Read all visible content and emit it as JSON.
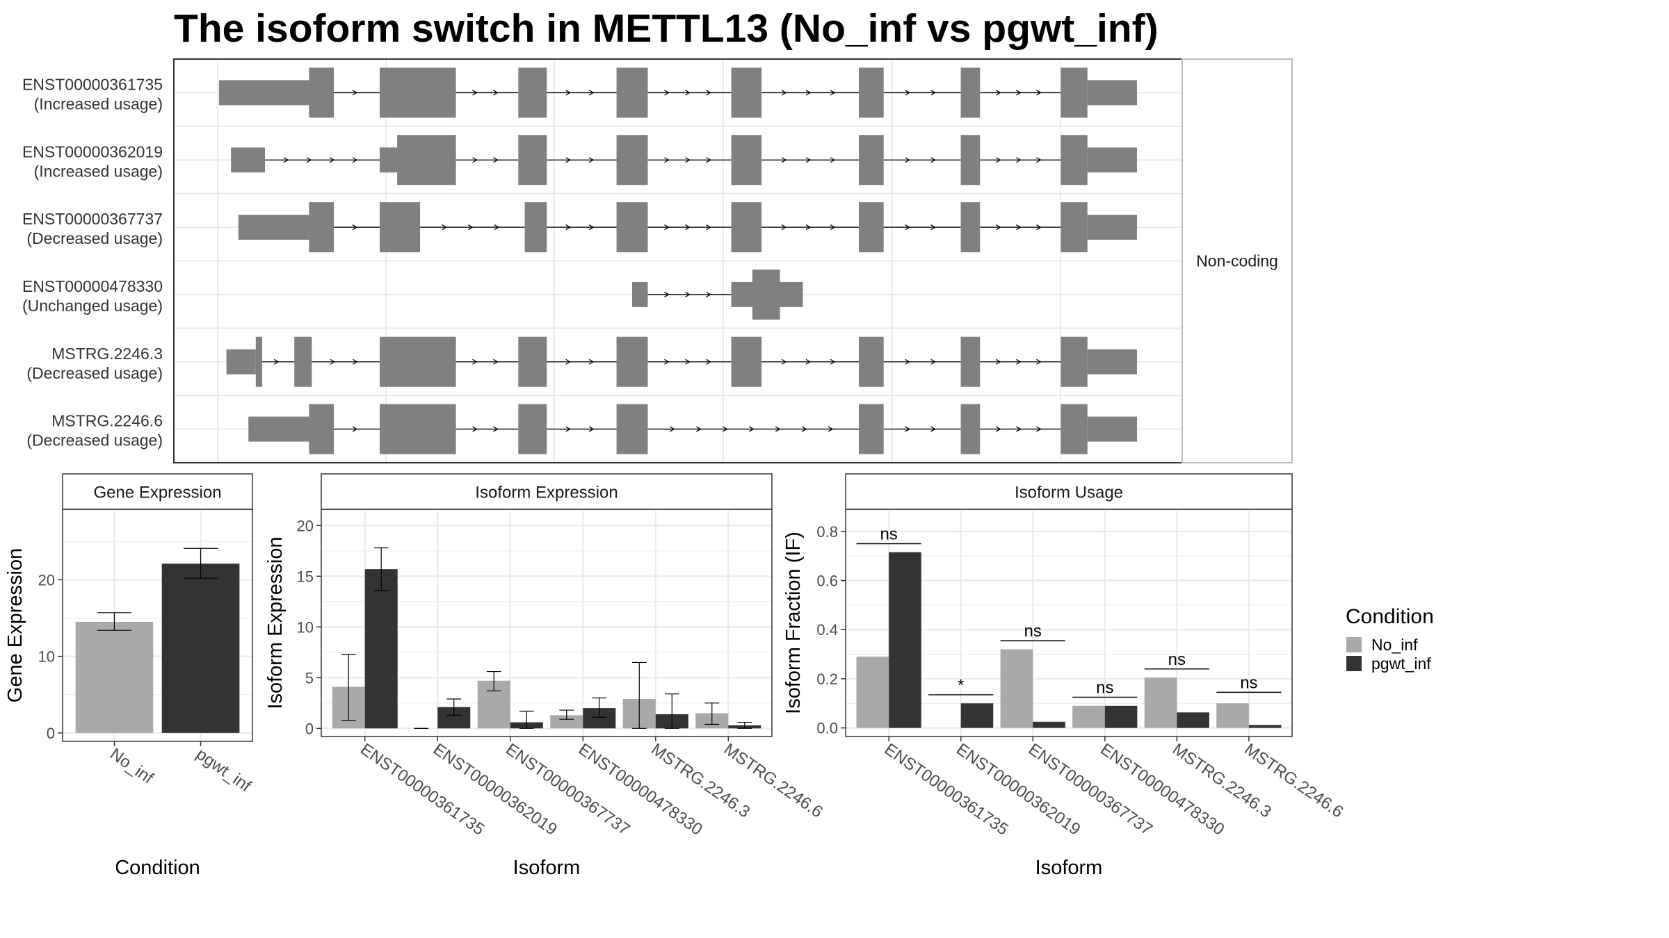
{
  "title": "The isoform switch in METTL13 (No_inf vs pgwt_inf)",
  "colors": {
    "no_inf": "#A9A9A9",
    "pgwt_inf": "#333333",
    "exon": "#808080",
    "grid": "#EBEBEB"
  },
  "chart_data": [
    {
      "type": "gene_structure",
      "strip_label": "Non-coding",
      "transcripts": [
        {
          "id": "ENST00000361735",
          "usage": "(Increased usage)",
          "exons": [
            {
              "s": 0.0,
              "e": 0.098,
              "h": "utr"
            },
            {
              "s": 0.098,
              "e": 0.125,
              "h": "cds"
            },
            {
              "s": 0.175,
              "e": 0.258,
              "h": "cds"
            },
            {
              "s": 0.326,
              "e": 0.357,
              "h": "cds"
            },
            {
              "s": 0.433,
              "e": 0.467,
              "h": "cds"
            },
            {
              "s": 0.558,
              "e": 0.591,
              "h": "cds"
            },
            {
              "s": 0.697,
              "e": 0.724,
              "h": "cds"
            },
            {
              "s": 0.808,
              "e": 0.829,
              "h": "cds"
            },
            {
              "s": 0.917,
              "e": 0.946,
              "h": "cds"
            },
            {
              "s": 0.946,
              "e": 1.0,
              "h": "utr"
            }
          ]
        },
        {
          "id": "ENST00000362019",
          "usage": "(Increased usage)",
          "exons": [
            {
              "s": 0.013,
              "e": 0.05,
              "h": "utr"
            },
            {
              "s": 0.175,
              "e": 0.194,
              "h": "utr"
            },
            {
              "s": 0.194,
              "e": 0.258,
              "h": "cds"
            },
            {
              "s": 0.326,
              "e": 0.357,
              "h": "cds"
            },
            {
              "s": 0.433,
              "e": 0.467,
              "h": "cds"
            },
            {
              "s": 0.558,
              "e": 0.591,
              "h": "cds"
            },
            {
              "s": 0.697,
              "e": 0.724,
              "h": "cds"
            },
            {
              "s": 0.808,
              "e": 0.829,
              "h": "cds"
            },
            {
              "s": 0.917,
              "e": 0.946,
              "h": "cds"
            },
            {
              "s": 0.946,
              "e": 1.0,
              "h": "utr"
            }
          ]
        },
        {
          "id": "ENST00000367737",
          "usage": "(Decreased usage)",
          "exons": [
            {
              "s": 0.021,
              "e": 0.098,
              "h": "utr"
            },
            {
              "s": 0.098,
              "e": 0.125,
              "h": "cds"
            },
            {
              "s": 0.175,
              "e": 0.219,
              "h": "cds"
            },
            {
              "s": 0.333,
              "e": 0.357,
              "h": "cds"
            },
            {
              "s": 0.433,
              "e": 0.467,
              "h": "cds"
            },
            {
              "s": 0.558,
              "e": 0.591,
              "h": "cds"
            },
            {
              "s": 0.697,
              "e": 0.724,
              "h": "cds"
            },
            {
              "s": 0.808,
              "e": 0.829,
              "h": "cds"
            },
            {
              "s": 0.917,
              "e": 0.946,
              "h": "cds"
            },
            {
              "s": 0.946,
              "e": 1.0,
              "h": "utr"
            }
          ]
        },
        {
          "id": "ENST00000478330",
          "usage": "(Unchanged usage)",
          "exons": [
            {
              "s": 0.45,
              "e": 0.467,
              "h": "utr"
            },
            {
              "s": 0.558,
              "e": 0.581,
              "h": "utr"
            },
            {
              "s": 0.581,
              "e": 0.611,
              "h": "cds"
            },
            {
              "s": 0.611,
              "e": 0.636,
              "h": "utr"
            }
          ]
        },
        {
          "id": "MSTRG.2246.3",
          "usage": "(Decreased usage)",
          "exons": [
            {
              "s": 0.008,
              "e": 0.04,
              "h": "utr"
            },
            {
              "s": 0.04,
              "e": 0.047,
              "h": "cds"
            },
            {
              "s": 0.082,
              "e": 0.101,
              "h": "cds"
            },
            {
              "s": 0.175,
              "e": 0.258,
              "h": "cds"
            },
            {
              "s": 0.326,
              "e": 0.357,
              "h": "cds"
            },
            {
              "s": 0.433,
              "e": 0.467,
              "h": "cds"
            },
            {
              "s": 0.558,
              "e": 0.591,
              "h": "cds"
            },
            {
              "s": 0.697,
              "e": 0.724,
              "h": "cds"
            },
            {
              "s": 0.808,
              "e": 0.829,
              "h": "cds"
            },
            {
              "s": 0.917,
              "e": 0.946,
              "h": "cds"
            },
            {
              "s": 0.946,
              "e": 1.0,
              "h": "utr"
            }
          ]
        },
        {
          "id": "MSTRG.2246.6",
          "usage": "(Decreased usage)",
          "exons": [
            {
              "s": 0.032,
              "e": 0.098,
              "h": "utr"
            },
            {
              "s": 0.098,
              "e": 0.125,
              "h": "cds"
            },
            {
              "s": 0.175,
              "e": 0.258,
              "h": "cds"
            },
            {
              "s": 0.326,
              "e": 0.357,
              "h": "cds"
            },
            {
              "s": 0.433,
              "e": 0.467,
              "h": "cds"
            },
            {
              "s": 0.697,
              "e": 0.724,
              "h": "cds"
            },
            {
              "s": 0.808,
              "e": 0.829,
              "h": "cds"
            },
            {
              "s": 0.917,
              "e": 0.946,
              "h": "cds"
            },
            {
              "s": 0.946,
              "e": 1.0,
              "h": "utr"
            }
          ]
        }
      ]
    },
    {
      "type": "bar",
      "strip_title": "Gene Expression",
      "xlabel": "Condition",
      "ylabel": "Gene Expression",
      "categories": [
        "No_inf",
        "pgwt_inf"
      ],
      "values": [
        14.5,
        22.1
      ],
      "errors": [
        [
          13.4,
          15.7
        ],
        [
          20.2,
          24.1
        ]
      ],
      "ylim": [
        -1.1,
        29.2
      ],
      "yticks": [
        0,
        10,
        20
      ]
    },
    {
      "type": "bar",
      "strip_title": "Isoform Expression",
      "xlabel": "Isoform",
      "ylabel": "Isoform Expression",
      "categories": [
        "ENST00000361735",
        "ENST00000362019",
        "ENST00000367737",
        "ENST00000478330",
        "MSTRG.2246.3",
        "MSTRG.2246.6"
      ],
      "series": [
        {
          "name": "No_inf",
          "values": [
            4.1,
            0.0,
            4.7,
            1.3,
            2.9,
            1.5
          ],
          "errors": [
            [
              0.8,
              7.3
            ],
            [
              0.0,
              0.0
            ],
            [
              3.7,
              5.6
            ],
            [
              0.9,
              1.8
            ],
            [
              0.0,
              6.5
            ],
            [
              0.4,
              2.5
            ]
          ]
        },
        {
          "name": "pgwt_inf",
          "values": [
            15.7,
            2.1,
            0.6,
            2.0,
            1.4,
            0.3
          ],
          "errors": [
            [
              13.6,
              17.8
            ],
            [
              1.3,
              2.9
            ],
            [
              0.0,
              1.7
            ],
            [
              1.1,
              3.0
            ],
            [
              0.0,
              3.4
            ],
            [
              0.0,
              0.6
            ]
          ]
        }
      ],
      "ylim": [
        -0.8,
        21.6
      ],
      "yticks": [
        0,
        5,
        10,
        15,
        20
      ]
    },
    {
      "type": "bar",
      "strip_title": "Isoform Usage",
      "xlabel": "Isoform",
      "ylabel": "Isoform Fraction (IF)",
      "categories": [
        "ENST00000361735",
        "ENST00000362019",
        "ENST00000367737",
        "ENST00000478330",
        "MSTRG.2246.3",
        "MSTRG.2246.6"
      ],
      "series": [
        {
          "name": "No_inf",
          "values": [
            0.29,
            0.0,
            0.32,
            0.09,
            0.205,
            0.1
          ]
        },
        {
          "name": "pgwt_inf",
          "values": [
            0.715,
            0.1,
            0.025,
            0.09,
            0.063,
            0.012
          ]
        }
      ],
      "significance": [
        {
          "label": "ns",
          "y": 0.75
        },
        {
          "label": "*",
          "y": 0.135
        },
        {
          "label": "ns",
          "y": 0.355
        },
        {
          "label": "ns",
          "y": 0.125
        },
        {
          "label": "ns",
          "y": 0.24
        },
        {
          "label": "ns",
          "y": 0.145
        }
      ],
      "ylim": [
        -0.035,
        0.89
      ],
      "yticks": [
        0.0,
        0.2,
        0.4,
        0.6,
        0.8
      ],
      "ytick_labels": [
        "0.0",
        "0.2",
        "0.4",
        "0.6",
        "0.8"
      ]
    }
  ],
  "legend": {
    "title": "Condition",
    "entries": [
      "No_inf",
      "pgwt_inf"
    ]
  }
}
